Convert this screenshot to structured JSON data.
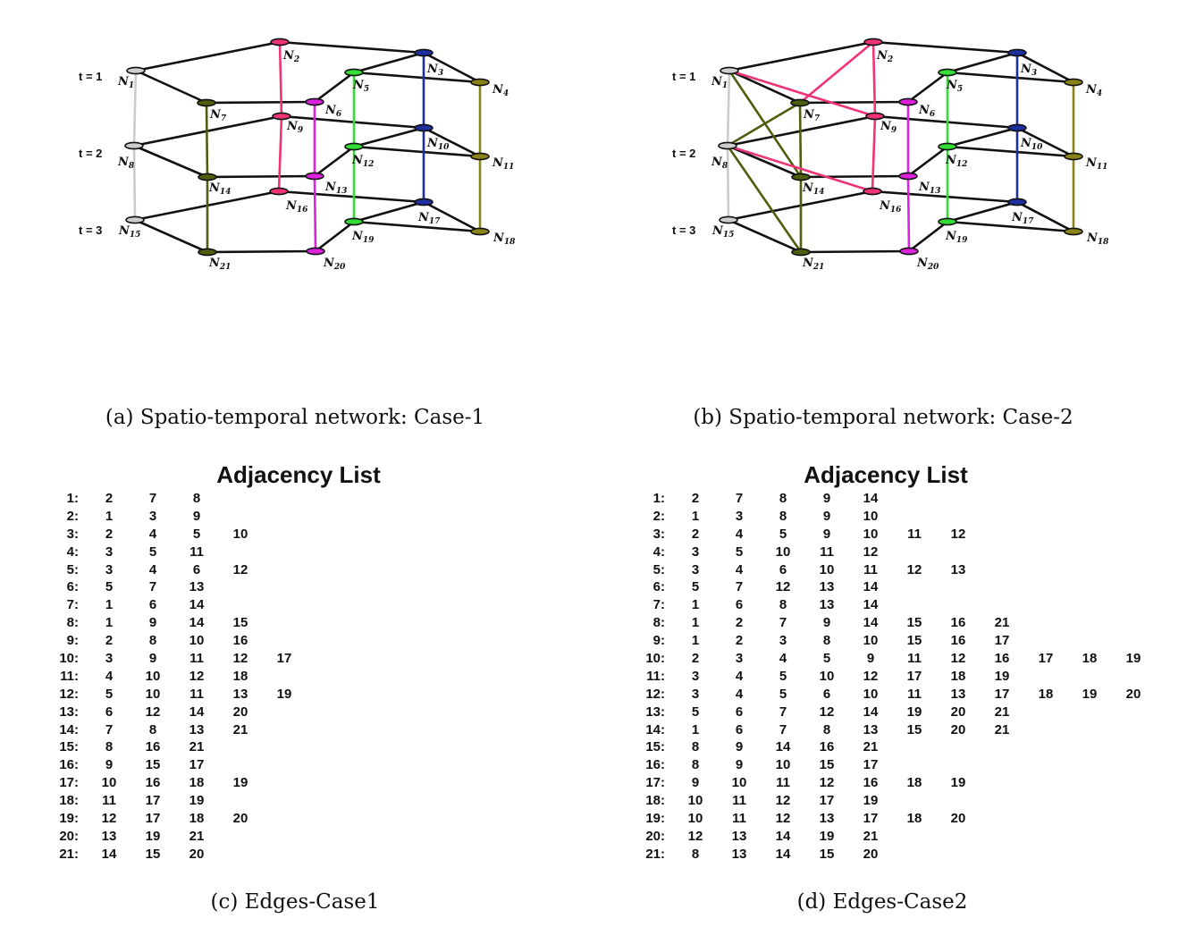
{
  "panels": [
    {
      "caption": "(a) Spatio-temporal network: Case-1",
      "time_labels": [
        "t = 1",
        "t = 2",
        "t = 3"
      ],
      "extra_edges": []
    },
    {
      "caption": "(b) Spatio-temporal network: Case-2",
      "time_labels": [
        "t = 1",
        "t = 2",
        "t = 3"
      ],
      "extra_edges": [
        {
          "from": 1,
          "to": 9,
          "color": "#ee3377"
        },
        {
          "from": 7,
          "to": 2,
          "color": "#ee3377"
        },
        {
          "from": 1,
          "to": 14,
          "color": "#4d5e0f"
        },
        {
          "from": 8,
          "to": 7,
          "color": "#4d5e0f"
        },
        {
          "from": 8,
          "to": 16,
          "color": "#ee3377"
        },
        {
          "from": 8,
          "to": 21,
          "color": "#4d5e0f"
        }
      ]
    }
  ],
  "nodes": [
    {
      "id": 1,
      "label": "N",
      "sub": "1"
    },
    {
      "id": 2,
      "label": "N",
      "sub": "2"
    },
    {
      "id": 3,
      "label": "N",
      "sub": "3"
    },
    {
      "id": 4,
      "label": "N",
      "sub": "4"
    },
    {
      "id": 5,
      "label": "N",
      "sub": "5"
    },
    {
      "id": 6,
      "label": "N",
      "sub": "6"
    },
    {
      "id": 7,
      "label": "N",
      "sub": "7"
    },
    {
      "id": 8,
      "label": "N",
      "sub": "8"
    },
    {
      "id": 9,
      "label": "N",
      "sub": "9"
    },
    {
      "id": 10,
      "label": "N",
      "sub": "10"
    },
    {
      "id": 11,
      "label": "N",
      "sub": "11"
    },
    {
      "id": 12,
      "label": "N",
      "sub": "12"
    },
    {
      "id": 13,
      "label": "N",
      "sub": "13"
    },
    {
      "id": 14,
      "label": "N",
      "sub": "14"
    },
    {
      "id": 15,
      "label": "N",
      "sub": "15"
    },
    {
      "id": 16,
      "label": "N",
      "sub": "16"
    },
    {
      "id": 17,
      "label": "N",
      "sub": "17"
    },
    {
      "id": 18,
      "label": "N",
      "sub": "18"
    },
    {
      "id": 19,
      "label": "N",
      "sub": "19"
    },
    {
      "id": 20,
      "label": "N",
      "sub": "20"
    },
    {
      "id": 21,
      "label": "N",
      "sub": "21"
    }
  ],
  "node_colors": {
    "1": "#cccccc",
    "2": "#ee3377",
    "3": "#1e2fa0",
    "4": "#8a8418",
    "5": "#33dd33",
    "6": "#dd22dd",
    "7": "#4d5e0f",
    "8": "#cccccc",
    "9": "#ee3377",
    "10": "#1e2fa0",
    "11": "#8a8418",
    "12": "#33dd33",
    "13": "#dd22dd",
    "14": "#4d5e0f",
    "15": "#cccccc",
    "16": "#ee3377",
    "17": "#1e2fa0",
    "18": "#8a8418",
    "19": "#33dd33",
    "20": "#dd22dd",
    "21": "#4d5e0f"
  },
  "spatial_edges": [
    [
      1,
      2
    ],
    [
      2,
      3
    ],
    [
      3,
      4
    ],
    [
      3,
      5
    ],
    [
      4,
      5
    ],
    [
      5,
      6
    ],
    [
      6,
      7
    ],
    [
      7,
      1
    ],
    [
      8,
      9
    ],
    [
      9,
      10
    ],
    [
      10,
      11
    ],
    [
      10,
      12
    ],
    [
      11,
      12
    ],
    [
      12,
      13
    ],
    [
      13,
      14
    ],
    [
      14,
      8
    ],
    [
      15,
      16
    ],
    [
      16,
      17
    ],
    [
      17,
      18
    ],
    [
      17,
      19
    ],
    [
      18,
      19
    ],
    [
      19,
      20
    ],
    [
      20,
      21
    ],
    [
      21,
      15
    ]
  ],
  "temporal_edges": [
    {
      "from": 1,
      "to": 8,
      "color": "#cccccc"
    },
    {
      "from": 8,
      "to": 15,
      "color": "#cccccc"
    },
    {
      "from": 2,
      "to": 9,
      "color": "#ee3377"
    },
    {
      "from": 9,
      "to": 16,
      "color": "#ee3377"
    },
    {
      "from": 3,
      "to": 10,
      "color": "#1e2fa0"
    },
    {
      "from": 10,
      "to": 17,
      "color": "#1e2fa0"
    },
    {
      "from": 4,
      "to": 11,
      "color": "#8a8418"
    },
    {
      "from": 11,
      "to": 18,
      "color": "#8a8418"
    },
    {
      "from": 5,
      "to": 12,
      "color": "#33dd33"
    },
    {
      "from": 12,
      "to": 19,
      "color": "#33dd33"
    },
    {
      "from": 6,
      "to": 13,
      "color": "#dd22dd"
    },
    {
      "from": 13,
      "to": 20,
      "color": "#dd22dd"
    },
    {
      "from": 7,
      "to": 14,
      "color": "#4d5e0f"
    },
    {
      "from": 14,
      "to": 21,
      "color": "#4d5e0f"
    }
  ],
  "adjacency": [
    {
      "title": "Adjacency List",
      "caption": "(c) Edges-Case1",
      "rows": [
        {
          "key": "1:",
          "values": [
            "2",
            "7",
            "8"
          ]
        },
        {
          "key": "2:",
          "values": [
            "1",
            "3",
            "9"
          ]
        },
        {
          "key": "3:",
          "values": [
            "2",
            "4",
            "5",
            "10"
          ]
        },
        {
          "key": "4:",
          "values": [
            "3",
            "5",
            "11"
          ]
        },
        {
          "key": "5:",
          "values": [
            "3",
            "4",
            "6",
            "12"
          ]
        },
        {
          "key": "6:",
          "values": [
            "5",
            "7",
            "13"
          ]
        },
        {
          "key": "7:",
          "values": [
            "1",
            "6",
            "14"
          ]
        },
        {
          "key": "8:",
          "values": [
            "1",
            "9",
            "14",
            "15"
          ]
        },
        {
          "key": "9:",
          "values": [
            "2",
            "8",
            "10",
            "16"
          ]
        },
        {
          "key": "10:",
          "values": [
            "3",
            "9",
            "11",
            "12",
            "17"
          ]
        },
        {
          "key": "11:",
          "values": [
            "4",
            "10",
            "12",
            "18"
          ]
        },
        {
          "key": "12:",
          "values": [
            "5",
            "10",
            "11",
            "13",
            "19"
          ]
        },
        {
          "key": "13:",
          "values": [
            "6",
            "12",
            "14",
            "20"
          ]
        },
        {
          "key": "14:",
          "values": [
            "7",
            "8",
            "13",
            "21"
          ]
        },
        {
          "key": "15:",
          "values": [
            "8",
            "16",
            "21"
          ]
        },
        {
          "key": "16:",
          "values": [
            "9",
            "15",
            "17"
          ]
        },
        {
          "key": "17:",
          "values": [
            "10",
            "16",
            "18",
            "19"
          ]
        },
        {
          "key": "18:",
          "values": [
            "11",
            "17",
            "19"
          ]
        },
        {
          "key": "19:",
          "values": [
            "12",
            "17",
            "18",
            "20"
          ]
        },
        {
          "key": "20:",
          "values": [
            "13",
            "19",
            "21"
          ]
        },
        {
          "key": "21:",
          "values": [
            "14",
            "15",
            "20"
          ]
        }
      ]
    },
    {
      "title": "Adjacency List",
      "caption": "(d) Edges-Case2",
      "rows": [
        {
          "key": "1:",
          "values": [
            "2",
            "7",
            "8",
            "9",
            "14"
          ]
        },
        {
          "key": "2:",
          "values": [
            "1",
            "3",
            "8",
            "9",
            "10"
          ]
        },
        {
          "key": "3:",
          "values": [
            "2",
            "4",
            "5",
            "9",
            "10",
            "11",
            "12"
          ]
        },
        {
          "key": "4:",
          "values": [
            "3",
            "5",
            "10",
            "11",
            "12"
          ]
        },
        {
          "key": "5:",
          "values": [
            "3",
            "4",
            "6",
            "10",
            "11",
            "12",
            "13"
          ]
        },
        {
          "key": "6:",
          "values": [
            "5",
            "7",
            "12",
            "13",
            "14"
          ]
        },
        {
          "key": "7:",
          "values": [
            "1",
            "6",
            "8",
            "13",
            "14"
          ]
        },
        {
          "key": "8:",
          "values": [
            "1",
            "2",
            "7",
            "9",
            "14",
            "15",
            "16",
            "21"
          ]
        },
        {
          "key": "9:",
          "values": [
            "1",
            "2",
            "3",
            "8",
            "10",
            "15",
            "16",
            "17"
          ]
        },
        {
          "key": "10:",
          "values": [
            "2",
            "3",
            "4",
            "5",
            "9",
            "11",
            "12",
            "16",
            "17",
            "18",
            "19"
          ]
        },
        {
          "key": "11:",
          "values": [
            "3",
            "4",
            "5",
            "10",
            "12",
            "17",
            "18",
            "19"
          ]
        },
        {
          "key": "12:",
          "values": [
            "3",
            "4",
            "5",
            "6",
            "10",
            "11",
            "13",
            "17",
            "18",
            "19",
            "20"
          ]
        },
        {
          "key": "13:",
          "values": [
            "5",
            "6",
            "7",
            "12",
            "14",
            "19",
            "20",
            "21"
          ]
        },
        {
          "key": "14:",
          "values": [
            "1",
            "6",
            "7",
            "8",
            "13",
            "15",
            "20",
            "21"
          ]
        },
        {
          "key": "15:",
          "values": [
            "8",
            "9",
            "14",
            "16",
            "21"
          ]
        },
        {
          "key": "16:",
          "values": [
            "8",
            "9",
            "10",
            "15",
            "17"
          ]
        },
        {
          "key": "17:",
          "values": [
            "9",
            "10",
            "11",
            "12",
            "16",
            "18",
            "19"
          ]
        },
        {
          "key": "18:",
          "values": [
            "10",
            "11",
            "12",
            "17",
            "19"
          ]
        },
        {
          "key": "19:",
          "values": [
            "10",
            "11",
            "12",
            "13",
            "17",
            "18",
            "20"
          ]
        },
        {
          "key": "20:",
          "values": [
            "12",
            "13",
            "14",
            "19",
            "21"
          ]
        },
        {
          "key": "21:",
          "values": [
            "8",
            "13",
            "14",
            "15",
            "20"
          ]
        }
      ]
    }
  ]
}
